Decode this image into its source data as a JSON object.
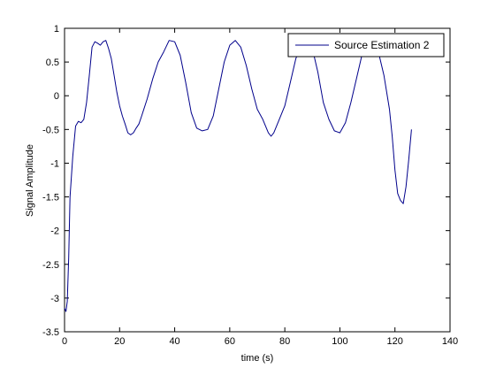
{
  "chart_data": {
    "type": "line",
    "title": "",
    "xlabel": "time (s)",
    "ylabel": "Signal Amplitude",
    "xlim": [
      0,
      140
    ],
    "ylim": [
      -3.5,
      1
    ],
    "xticks": [
      0,
      20,
      40,
      60,
      80,
      100,
      120,
      140
    ],
    "yticks": [
      1,
      0.5,
      0,
      -0.5,
      -1,
      -1.5,
      -2,
      -2.5,
      -3,
      -3.5
    ],
    "xtick_labels": [
      "0",
      "20",
      "40",
      "60",
      "80",
      "100",
      "120",
      "140"
    ],
    "ytick_labels": [
      "1",
      "0.5",
      "0",
      "-0.5",
      "-1",
      "-1.5",
      "-2",
      "-2.5",
      "-3",
      "-3.5"
    ],
    "grid": false,
    "legend_position": "top-right",
    "series": [
      {
        "name": "Source Estimation 2",
        "color": "#00008b",
        "x": [
          0,
          0.5,
          1,
          1.5,
          2,
          3,
          4,
          5,
          6,
          7,
          8,
          9,
          10,
          11,
          12,
          13,
          14,
          15,
          16,
          17,
          18,
          19,
          20,
          21,
          22,
          23,
          24,
          25,
          26,
          27,
          28,
          30,
          32,
          34,
          36,
          38,
          40,
          42,
          44,
          46,
          48,
          50,
          52,
          54,
          56,
          58,
          60,
          62,
          64,
          66,
          68,
          70,
          72,
          74,
          75,
          76,
          78,
          80,
          82,
          84,
          86,
          88,
          90,
          92,
          94,
          96,
          98,
          100,
          102,
          104,
          106,
          108,
          110,
          112,
          114,
          116,
          118,
          119,
          120,
          121,
          122,
          123,
          124,
          125,
          126
        ],
        "y": [
          -3.15,
          -3.2,
          -3.05,
          -2.4,
          -1.5,
          -0.9,
          -0.45,
          -0.38,
          -0.4,
          -0.35,
          -0.1,
          0.3,
          0.72,
          0.8,
          0.78,
          0.75,
          0.8,
          0.82,
          0.7,
          0.55,
          0.3,
          0.05,
          -0.15,
          -0.3,
          -0.42,
          -0.55,
          -0.58,
          -0.55,
          -0.48,
          -0.42,
          -0.3,
          -0.05,
          0.25,
          0.5,
          0.65,
          0.82,
          0.8,
          0.6,
          0.2,
          -0.25,
          -0.48,
          -0.52,
          -0.5,
          -0.3,
          0.1,
          0.5,
          0.75,
          0.82,
          0.72,
          0.45,
          0.1,
          -0.2,
          -0.35,
          -0.55,
          -0.6,
          -0.55,
          -0.35,
          -0.15,
          0.2,
          0.55,
          0.75,
          0.82,
          0.7,
          0.35,
          -0.1,
          -0.35,
          -0.52,
          -0.55,
          -0.4,
          -0.1,
          0.25,
          0.6,
          0.75,
          0.78,
          0.65,
          0.3,
          -0.2,
          -0.6,
          -1.1,
          -1.45,
          -1.55,
          -1.6,
          -1.35,
          -0.95,
          -0.5
        ]
      }
    ]
  }
}
